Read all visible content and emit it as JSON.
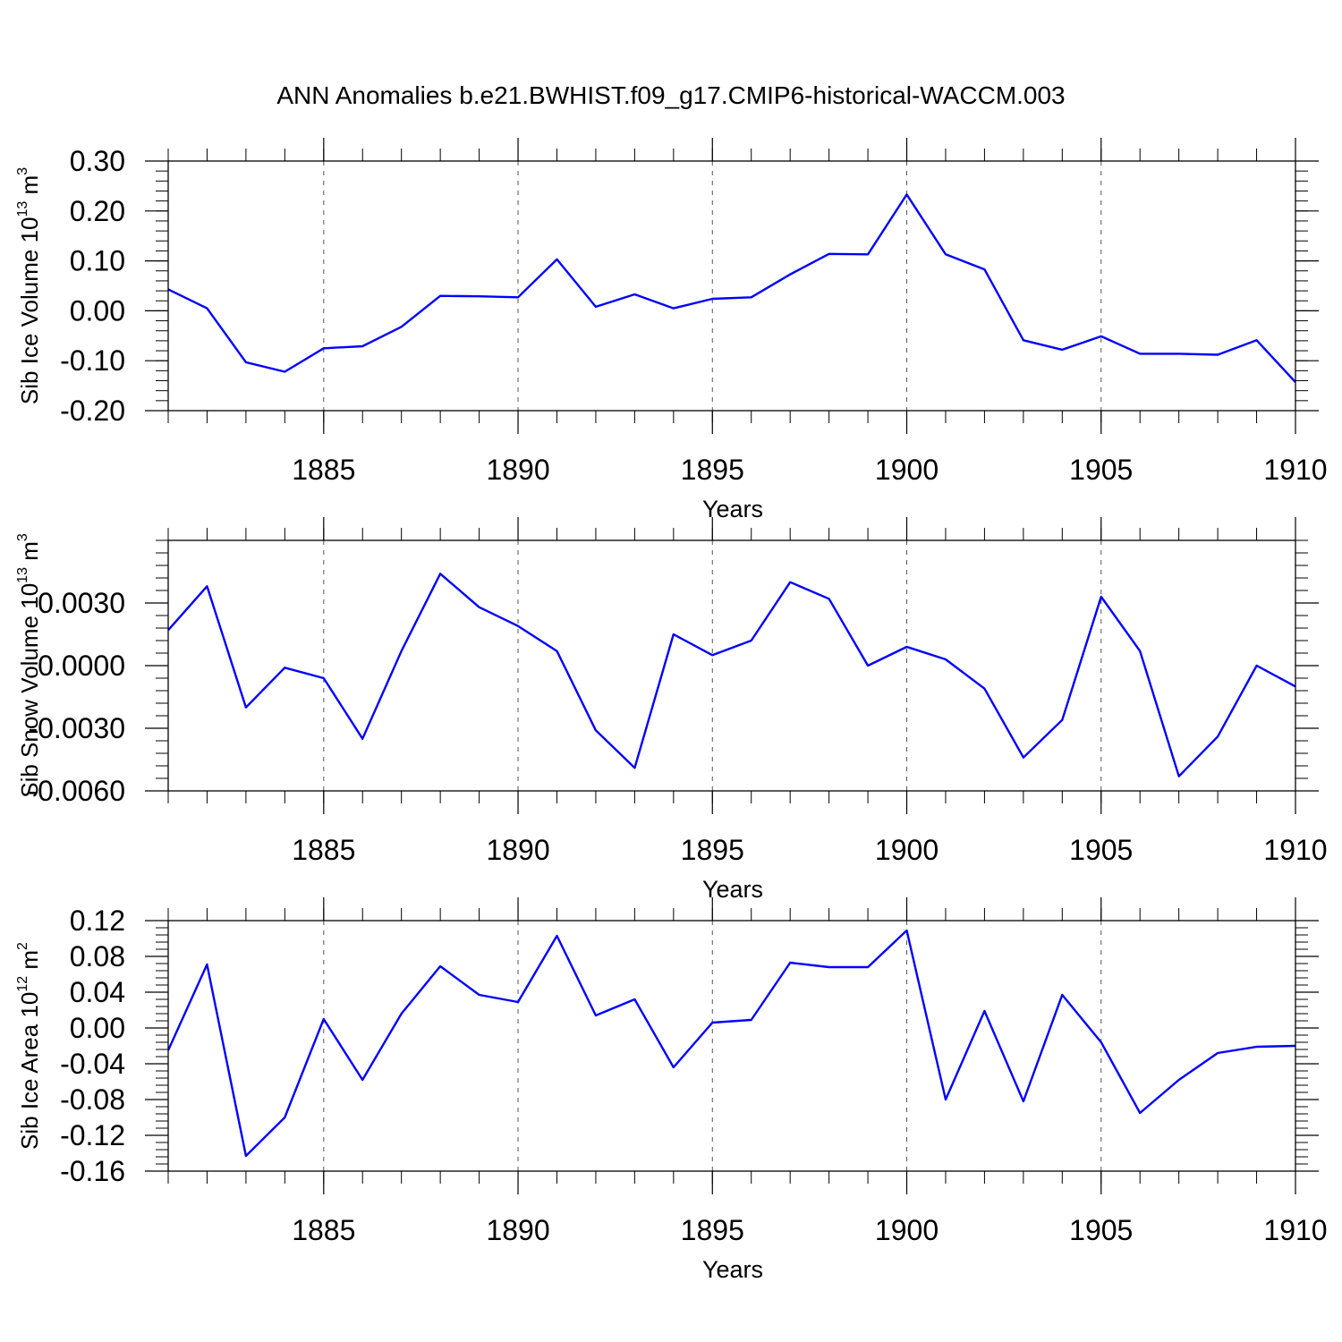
{
  "chart_data": {
    "type": "line",
    "title": "ANN Anomalies b.e21.BWHIST.f09_g17.CMIP6-historical-WACCM.003",
    "line_color": "#0000ff",
    "years": [
      1881,
      1882,
      1883,
      1884,
      1885,
      1886,
      1887,
      1888,
      1889,
      1890,
      1891,
      1892,
      1893,
      1894,
      1895,
      1896,
      1897,
      1898,
      1899,
      1900,
      1901,
      1902,
      1903,
      1904,
      1905,
      1906,
      1907,
      1908,
      1909,
      1910
    ],
    "xlim": [
      1881,
      1910
    ],
    "x_ticks": [
      1885,
      1890,
      1895,
      1900,
      1905,
      1910
    ],
    "x_tick_labels": [
      "1885",
      "1890",
      "1895",
      "1900",
      "1905",
      "1910"
    ],
    "panels": [
      {
        "xlabel": "Years",
        "ylabel_prefix": "Sib Ice Volume 10",
        "ylabel_exp": "13",
        "ylabel_unit": " m",
        "ylabel_unit_exp": "3",
        "ylim": [
          -0.2,
          0.3
        ],
        "y_ticks": [
          0.3,
          0.2,
          0.1,
          0.0,
          -0.1,
          -0.2
        ],
        "y_tick_labels": [
          "0.30",
          "0.20",
          "0.10",
          "0.00",
          "-0.10",
          "-0.20"
        ],
        "values": [
          0.043,
          0.005,
          -0.103,
          -0.122,
          -0.075,
          -0.071,
          -0.032,
          0.03,
          0.029,
          0.027,
          0.103,
          0.008,
          0.033,
          0.005,
          0.024,
          0.027,
          0.073,
          0.114,
          0.113,
          0.233,
          0.113,
          0.083,
          -0.059,
          -0.078,
          -0.051,
          -0.086,
          -0.086,
          -0.088,
          -0.059,
          -0.143
        ]
      },
      {
        "xlabel": "Years",
        "ylabel_prefix": "Sib Snow Volume 10",
        "ylabel_exp": "13",
        "ylabel_unit": " m",
        "ylabel_unit_exp": "3",
        "ylim": [
          -0.006,
          0.006
        ],
        "y_ticks": [
          0.003,
          0.0,
          -0.003,
          -0.006
        ],
        "y_tick_labels": [
          "0.0030",
          "0.0000",
          "-0.0030",
          "-0.0060"
        ],
        "values": [
          0.0017,
          0.0038,
          -0.002,
          -0.0001,
          -0.0006,
          -0.0035,
          0.0007,
          0.0044,
          0.0028,
          0.0019,
          0.0007,
          -0.0031,
          -0.0049,
          0.0015,
          0.0005,
          0.0012,
          0.004,
          0.0032,
          0.0,
          0.0009,
          0.0003,
          -0.0011,
          -0.0044,
          -0.0026,
          0.0033,
          0.0007,
          -0.0053,
          -0.0034,
          0.0,
          -0.001
        ]
      },
      {
        "xlabel": "Years",
        "ylabel_prefix": "Sib Ice Area 10",
        "ylabel_exp": "12",
        "ylabel_unit": " m",
        "ylabel_unit_exp": "2",
        "ylim": [
          -0.16,
          0.12
        ],
        "y_ticks": [
          0.12,
          0.08,
          0.04,
          0.0,
          -0.04,
          -0.08,
          -0.12,
          -0.16
        ],
        "y_tick_labels": [
          "0.12",
          "0.08",
          "0.04",
          "0.00",
          "-0.04",
          "-0.08",
          "-0.12",
          "-0.16"
        ],
        "values": [
          -0.025,
          0.071,
          -0.143,
          -0.1,
          0.01,
          -0.058,
          0.016,
          0.069,
          0.037,
          0.029,
          0.103,
          0.014,
          0.032,
          -0.044,
          0.006,
          0.009,
          0.073,
          0.068,
          0.068,
          0.109,
          -0.08,
          0.019,
          -0.082,
          0.037,
          -0.016,
          -0.095,
          -0.058,
          -0.028,
          -0.021,
          -0.02
        ]
      }
    ]
  }
}
